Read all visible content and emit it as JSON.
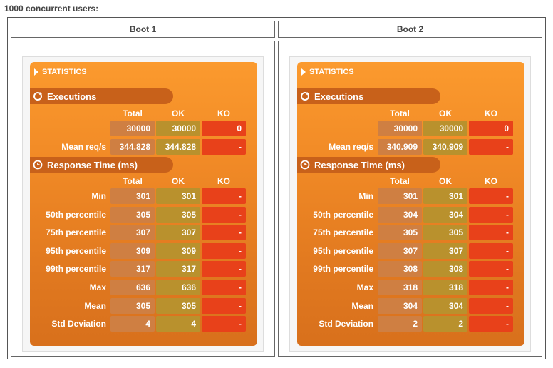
{
  "caption": "1000 concurrent users:",
  "columns": [
    "Boot 1",
    "Boot 2"
  ],
  "panels": [
    {
      "statistics_label": "STATISTICS",
      "executions_label": "Executions",
      "response_label": "Response Time (ms)",
      "headers": {
        "total": "Total",
        "ok": "OK",
        "ko": "KO"
      },
      "executions": [
        {
          "label": "",
          "total": "30000",
          "ok": "30000",
          "ko": "0"
        },
        {
          "label": "Mean req/s",
          "total": "344.828",
          "ok": "344.828",
          "ko": "-"
        }
      ],
      "response": [
        {
          "label": "Min",
          "total": "301",
          "ok": "301",
          "ko": "-"
        },
        {
          "label": "50th percentile",
          "total": "305",
          "ok": "305",
          "ko": "-"
        },
        {
          "label": "75th percentile",
          "total": "307",
          "ok": "307",
          "ko": "-"
        },
        {
          "label": "95th percentile",
          "total": "309",
          "ok": "309",
          "ko": "-"
        },
        {
          "label": "99th percentile",
          "total": "317",
          "ok": "317",
          "ko": "-"
        },
        {
          "label": "Max",
          "total": "636",
          "ok": "636",
          "ko": "-"
        },
        {
          "label": "Mean",
          "total": "305",
          "ok": "305",
          "ko": "-"
        },
        {
          "label": "Std Deviation",
          "total": "4",
          "ok": "4",
          "ko": "-"
        }
      ]
    },
    {
      "statistics_label": "STATISTICS",
      "executions_label": "Executions",
      "response_label": "Response Time (ms)",
      "headers": {
        "total": "Total",
        "ok": "OK",
        "ko": "KO"
      },
      "executions": [
        {
          "label": "",
          "total": "30000",
          "ok": "30000",
          "ko": "0"
        },
        {
          "label": "Mean req/s",
          "total": "340.909",
          "ok": "340.909",
          "ko": "-"
        }
      ],
      "response": [
        {
          "label": "Min",
          "total": "301",
          "ok": "301",
          "ko": "-"
        },
        {
          "label": "50th percentile",
          "total": "304",
          "ok": "304",
          "ko": "-"
        },
        {
          "label": "75th percentile",
          "total": "305",
          "ok": "305",
          "ko": "-"
        },
        {
          "label": "95th percentile",
          "total": "307",
          "ok": "307",
          "ko": "-"
        },
        {
          "label": "99th percentile",
          "total": "308",
          "ok": "308",
          "ko": "-"
        },
        {
          "label": "Max",
          "total": "318",
          "ok": "318",
          "ko": "-"
        },
        {
          "label": "Mean",
          "total": "304",
          "ok": "304",
          "ko": "-"
        },
        {
          "label": "Std Deviation",
          "total": "2",
          "ok": "2",
          "ko": "-"
        }
      ]
    }
  ]
}
